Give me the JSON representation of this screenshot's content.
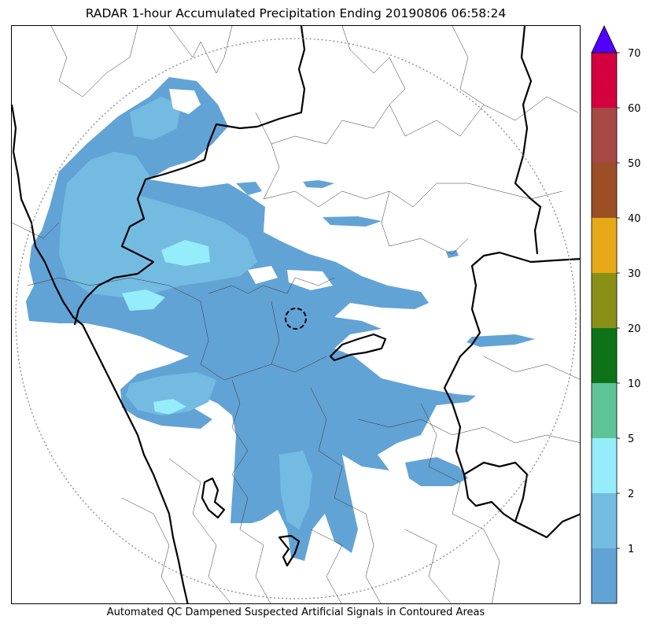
{
  "title": "RADAR 1-hour Accumulated Precipitation Ending 20190806 06:58:24",
  "caption": "Automated QC Dampened Suspected Artificial Signals in Contoured Areas",
  "colors": {
    "below_1": "#62a3d6",
    "bin_1_2": "#74bbe2",
    "bin_2_5": "#95edfc",
    "bin_5_10": "#5dc497",
    "bin_10_20": "#0e7318",
    "bin_20_30": "#8a9016",
    "bin_30_40": "#e8a918",
    "bin_40_50": "#9c4e25",
    "bin_50_60": "#a64844",
    "bin_60_70": "#d4003f",
    "over_70": "#5000ff"
  },
  "colorbar": {
    "units": "",
    "ticks": [
      "1",
      "2",
      "5",
      "10",
      "20",
      "30",
      "40",
      "50",
      "60",
      "70"
    ],
    "bins": [
      {
        "label": "",
        "color": "#62a3d6"
      },
      {
        "label": "1",
        "color": "#74bbe2"
      },
      {
        "label": "2",
        "color": "#95edfc"
      },
      {
        "label": "5",
        "color": "#5dc497"
      },
      {
        "label": "10",
        "color": "#0e7318"
      },
      {
        "label": "20",
        "color": "#8a9016"
      },
      {
        "label": "30",
        "color": "#e8a918"
      },
      {
        "label": "40",
        "color": "#9c4e25"
      },
      {
        "label": "50",
        "color": "#a64844"
      },
      {
        "label": "60",
        "color": "#d4003f"
      }
    ],
    "extend_max": true
  }
}
